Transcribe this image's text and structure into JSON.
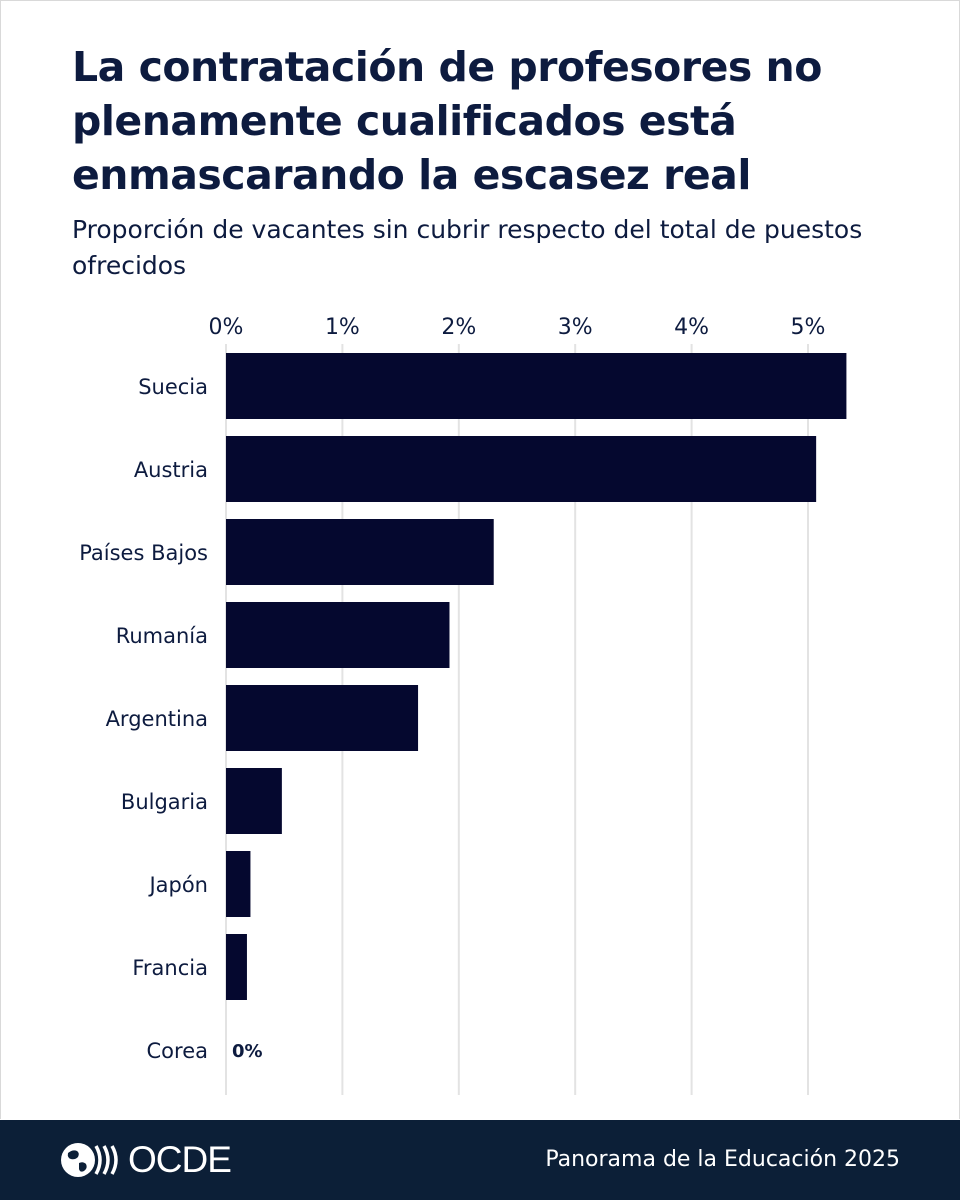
{
  "chart_data": {
    "type": "bar",
    "orientation": "horizontal",
    "title": "La contratación de profesores no plenamente cualificados está enmascarando la escasez real",
    "subtitle": "Proporción de vacantes sin cubrir respecto del total de puestos ofrecidos",
    "categories": [
      "Suecia",
      "Austria",
      "Países Bajos",
      "Rumanía",
      "Argentina",
      "Bulgaria",
      "Japón",
      "Francia",
      "Corea"
    ],
    "values": [
      5.33,
      5.07,
      2.3,
      1.92,
      1.65,
      0.48,
      0.21,
      0.18,
      0
    ],
    "xlim": [
      0,
      5.33
    ],
    "xticks": [
      "0%",
      "1%",
      "2%",
      "3%",
      "4%",
      "5%"
    ],
    "tick_values": [
      0,
      1,
      2,
      3,
      4,
      5
    ],
    "axis_position": "top",
    "grid": true,
    "value_labels": {
      "Corea": "0%"
    },
    "bar_color": "#05082f",
    "grid_color": "#e3e3e3"
  },
  "footer": {
    "logo_text": "OCDE",
    "source": "Panorama de la Educación 2025",
    "background": "#0c1f37"
  }
}
